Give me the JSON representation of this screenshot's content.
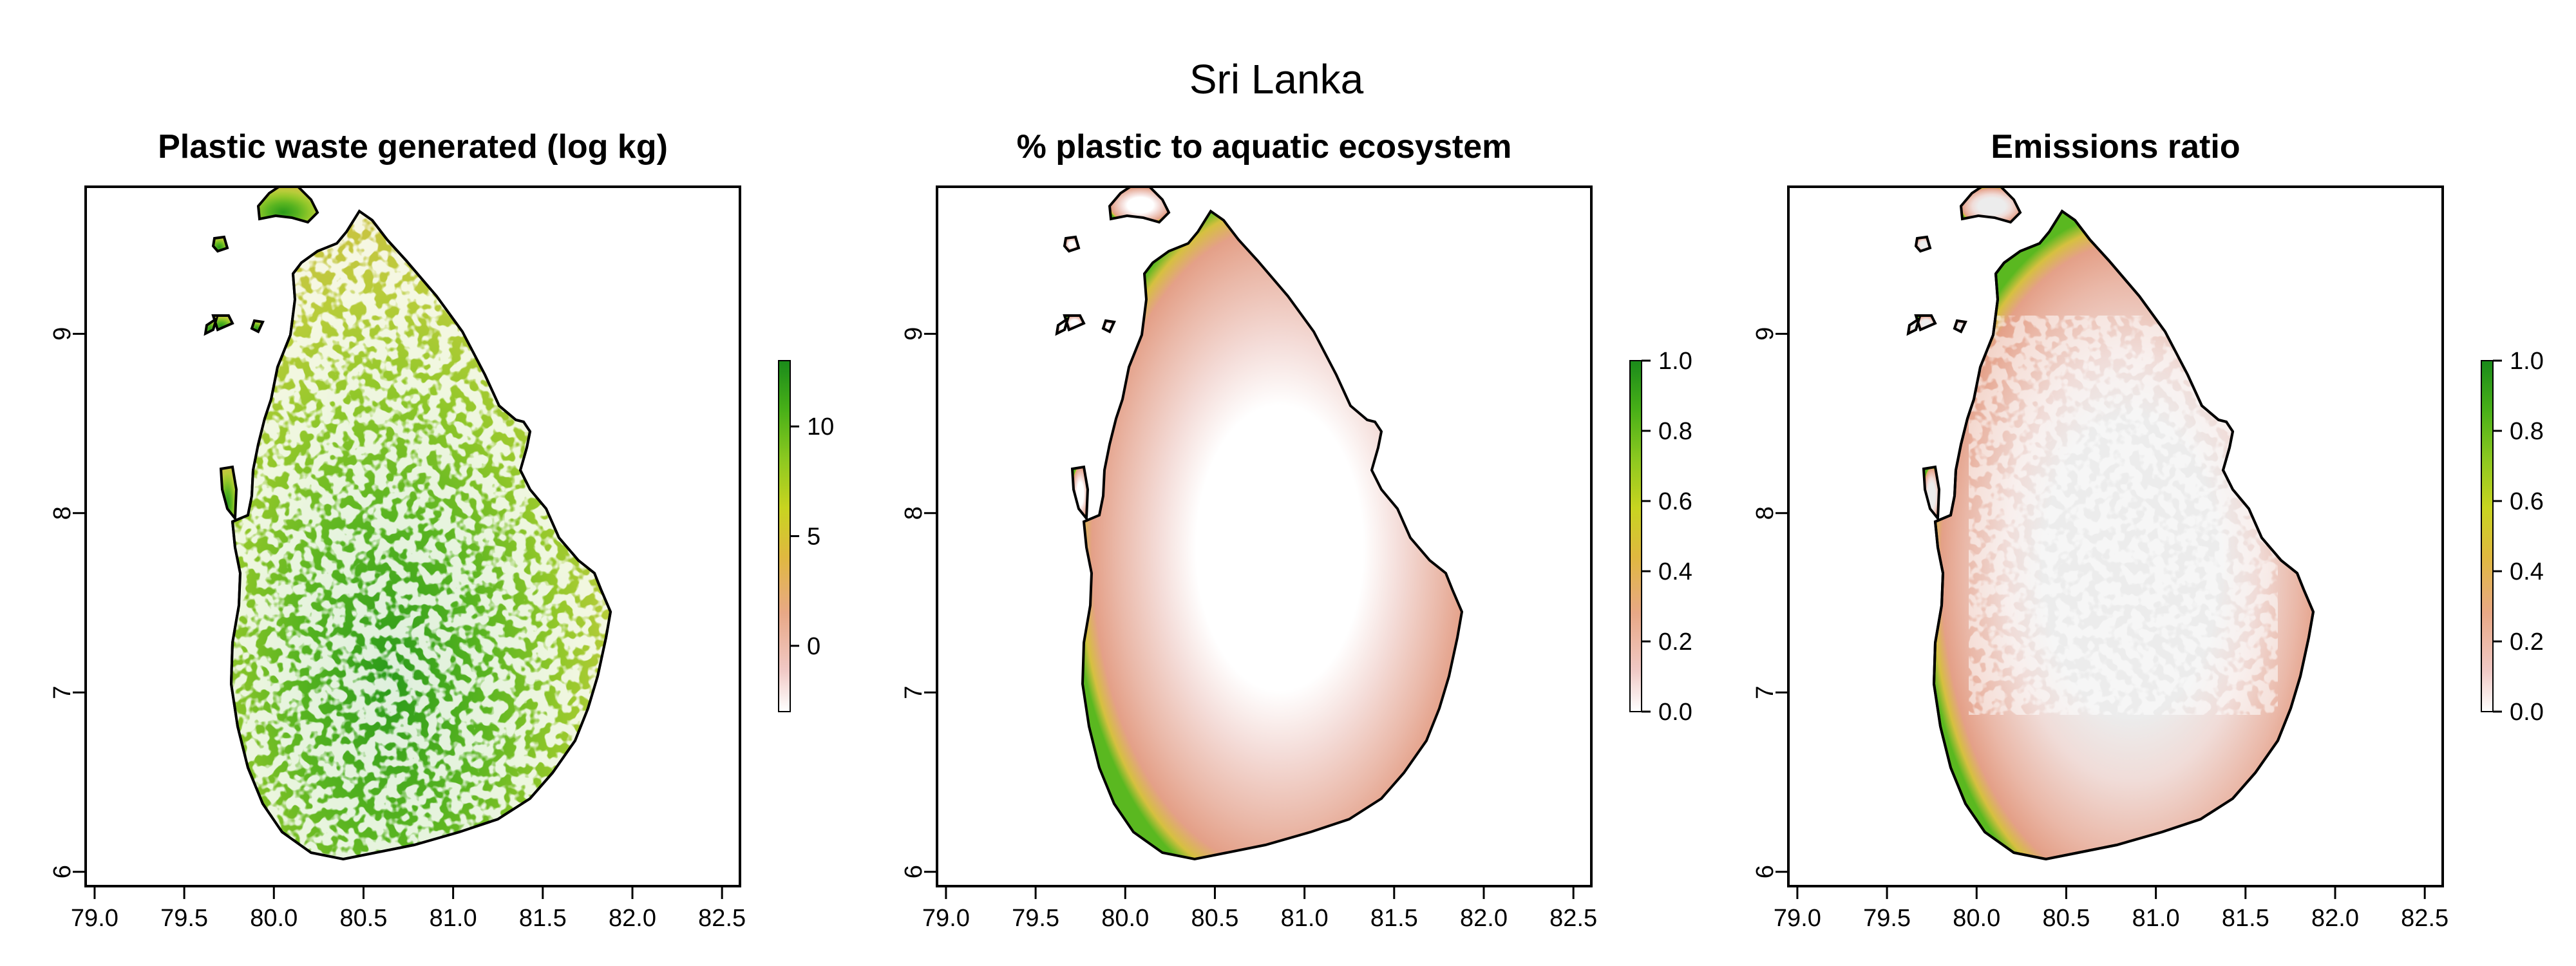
{
  "title": "Sri Lanka",
  "colors": {
    "ramp": [
      "#ffffff",
      "#f0c8c4",
      "#e8a886",
      "#e0b840",
      "#c8d420",
      "#8cc820",
      "#48b018",
      "#1a8a1a"
    ],
    "grey_nodata": "#ececec",
    "frame": "#000000"
  },
  "x_ticks": [
    "79.0",
    "79.5",
    "80.0",
    "80.5",
    "81.0",
    "81.5",
    "82.0",
    "82.5"
  ],
  "y_ticks": [
    "6",
    "7",
    "8",
    "9"
  ],
  "panels": [
    {
      "title": "Plastic waste generated (log kg)",
      "legend": {
        "labels": [
          "10",
          "5",
          "0"
        ],
        "values": [
          10,
          5,
          0
        ],
        "range": [
          -3,
          13
        ]
      },
      "fill_style": "waste"
    },
    {
      "title": "% plastic to aquatic ecosystem",
      "legend": {
        "labels": [
          "1.0",
          "0.8",
          "0.6",
          "0.4",
          "0.2",
          "0.0"
        ],
        "values": [
          1.0,
          0.8,
          0.6,
          0.4,
          0.2,
          0.0
        ],
        "range": [
          0,
          1
        ]
      },
      "fill_style": "coastal"
    },
    {
      "title": "Emissions ratio",
      "legend": {
        "labels": [
          "1.0",
          "0.8",
          "0.6",
          "0.4",
          "0.2",
          "0.0"
        ],
        "values": [
          1.0,
          0.8,
          0.6,
          0.4,
          0.2,
          0.0
        ],
        "range": [
          0,
          1
        ]
      },
      "fill_style": "emissions"
    }
  ]
}
